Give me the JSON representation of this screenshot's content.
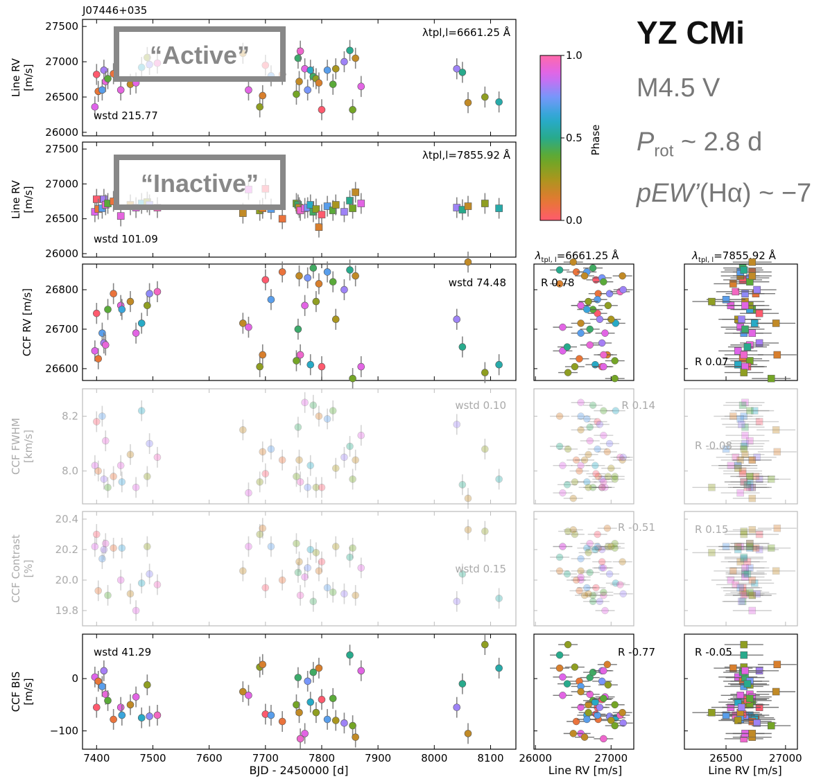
{
  "figure": {
    "star_id": "J07446+035",
    "star_name": "YZ CMi",
    "spectral_type": "M4.5 V",
    "prot_symbol": "P",
    "prot_sub": "rot",
    "prot_value": "~ 2.8 d",
    "pew_label": "pEW’",
    "pew_value": "(Hα) ~ −7",
    "label_active": "“Active”",
    "label_inactive": "“Inactive”",
    "colorbar": {
      "label": "Phase",
      "ticks": [
        "0.0",
        "0.5",
        "1.0"
      ]
    },
    "col_titles": {
      "prefix": "λ",
      "sub": "tpl, l",
      "active": "=6661.25 Å",
      "inactive": "=7855.92 Å"
    },
    "xlabel_time": "BJD - 2450000 [d]",
    "xlabel_rv": "Line RV [m/s]",
    "xticks_time": [
      "7400",
      "7500",
      "7600",
      "7700",
      "7800",
      "7900",
      "8000",
      "8100"
    ],
    "xticks_rv_left": [
      "26000",
      "27000"
    ],
    "xticks_rv_right": [
      "26500",
      "27000"
    ]
  },
  "chart_data": [
    {
      "panel": "line-rv-active",
      "type": "scatter",
      "ylabel": "Line RV [m/s]",
      "ylim": [
        25950,
        27600
      ],
      "yticks": [
        "26000",
        "26500",
        "27000",
        "27500"
      ],
      "wstd": "wstd 215.77",
      "annotation": "λtpl,l=6661.25 Å",
      "x": [
        7397,
        7400,
        7403,
        7410,
        7413,
        7416,
        7420,
        7430,
        7443,
        7460,
        7470,
        7480,
        7490,
        7494,
        7508,
        7660,
        7670,
        7690,
        7695,
        7700,
        7710,
        7730,
        7755,
        7758,
        7760,
        7762,
        7770,
        7775,
        7780,
        7785,
        7790,
        7795,
        7800,
        7810,
        7820,
        7825,
        7840,
        7850,
        7855,
        7860,
        7870,
        8040,
        8050,
        8060,
        8090,
        8115
      ],
      "y": [
        26360,
        26820,
        26580,
        26600,
        26880,
        26720,
        26760,
        26830,
        26600,
        26680,
        26700,
        26920,
        27060,
        26960,
        26980,
        27120,
        26600,
        26360,
        26520,
        26950,
        26800,
        26820,
        26540,
        27050,
        26720,
        27150,
        26900,
        26600,
        26880,
        26790,
        26760,
        26700,
        26320,
        26880,
        26680,
        26900,
        27000,
        27160,
        26320,
        27050,
        26650,
        26900,
        26850,
        26420,
        26500,
        26430
      ]
    },
    {
      "panel": "line-rv-inactive",
      "type": "scatter",
      "ylabel": "Line RV [m/s]",
      "ylim": [
        25950,
        27600
      ],
      "yticks": [
        "26000",
        "26500",
        "27000",
        "27500"
      ],
      "wstd": "wstd 101.09",
      "annotation": "λtpl,l=7855.92 Å",
      "x": [
        7397,
        7400,
        7403,
        7410,
        7413,
        7416,
        7420,
        7430,
        7443,
        7460,
        7470,
        7480,
        7490,
        7494,
        7508,
        7660,
        7670,
        7690,
        7695,
        7700,
        7710,
        7730,
        7755,
        7758,
        7760,
        7762,
        7770,
        7775,
        7780,
        7785,
        7790,
        7795,
        7800,
        7810,
        7820,
        7825,
        7840,
        7850,
        7855,
        7860,
        7870,
        8040,
        8050,
        8060,
        8090,
        8115
      ],
      "y": [
        26600,
        26780,
        26640,
        26650,
        26780,
        26700,
        26720,
        26750,
        26540,
        26700,
        26660,
        26720,
        26740,
        26700,
        26660,
        26580,
        26920,
        26620,
        26650,
        26930,
        26640,
        26500,
        26720,
        26700,
        26660,
        26620,
        26650,
        26660,
        26700,
        26600,
        26640,
        26380,
        26560,
        26680,
        26620,
        26700,
        26600,
        26760,
        26650,
        26880,
        26720,
        26660,
        26630,
        26680,
        26720,
        26650
      ]
    },
    {
      "panel": "ccf-rv",
      "type": "scatter",
      "ylabel": "CCF RV [m/s]",
      "ylim": [
        26570,
        26865
      ],
      "yticks": [
        "26600",
        "26700",
        "26800"
      ],
      "wstd": "wstd 74.48",
      "x": [
        7397,
        7400,
        7403,
        7410,
        7413,
        7416,
        7420,
        7430,
        7443,
        7445,
        7460,
        7470,
        7480,
        7490,
        7494,
        7508,
        7660,
        7670,
        7690,
        7695,
        7700,
        7710,
        7730,
        7755,
        7758,
        7760,
        7762,
        7770,
        7775,
        7780,
        7785,
        7790,
        7795,
        7800,
        7810,
        7820,
        7825,
        7840,
        7850,
        7855,
        7860,
        7870,
        8040,
        8050,
        8060,
        8090,
        8115
      ],
      "y": [
        26645,
        26740,
        26625,
        26690,
        26665,
        26660,
        26750,
        26790,
        26760,
        26750,
        26770,
        26690,
        26715,
        26760,
        26790,
        26795,
        26715,
        26705,
        26605,
        26635,
        26825,
        26775,
        26845,
        26620,
        26700,
        26835,
        26635,
        26760,
        26830,
        26610,
        26855,
        26770,
        26815,
        26605,
        26845,
        26820,
        26725,
        26800,
        26850,
        26575,
        26835,
        26605,
        26725,
        26655,
        26870,
        26590,
        26610
      ]
    },
    {
      "panel": "ccf-fwhm",
      "type": "scatter",
      "ylabel": "CCF FWHM [km/s]",
      "ylim": [
        7.88,
        8.3
      ],
      "yticks": [
        "8.0",
        "8.2"
      ],
      "wstd": "wstd 0.10",
      "x": [
        7397,
        7400,
        7403,
        7410,
        7413,
        7416,
        7420,
        7430,
        7443,
        7445,
        7460,
        7470,
        7480,
        7490,
        7494,
        7508,
        7660,
        7670,
        7690,
        7695,
        7700,
        7710,
        7730,
        7755,
        7758,
        7760,
        7762,
        7770,
        7775,
        7780,
        7785,
        7790,
        7795,
        7800,
        7810,
        7820,
        7825,
        7840,
        7850,
        7855,
        7860,
        7870,
        8040,
        8050,
        8060,
        8090,
        8115
      ],
      "y": [
        8.02,
        8.18,
        8.0,
        8.2,
        7.97,
        8.11,
        7.94,
        7.98,
        8.02,
        7.96,
        8.06,
        7.94,
        8.22,
        7.98,
        8.1,
        8.05,
        8.15,
        7.92,
        7.96,
        8.07,
        7.99,
        8.08,
        8.04,
        7.98,
        8.16,
        8.04,
        7.96,
        8.25,
        7.94,
        8.02,
        8.24,
        7.94,
        8.2,
        7.94,
        8.19,
        8.22,
        8.01,
        8.05,
        8.09,
        7.97,
        8.04,
        8.13,
        8.17,
        7.95,
        7.9,
        8.08,
        7.97
      ]
    },
    {
      "panel": "ccf-contrast",
      "type": "scatter",
      "ylabel": "CCF Contrast [%]",
      "ylim": [
        19.7,
        20.45
      ],
      "yticks": [
        "19.8",
        "20.0",
        "20.2",
        "20.4"
      ],
      "wstd": "wstd 0.15",
      "x": [
        7397,
        7400,
        7403,
        7410,
        7413,
        7416,
        7420,
        7430,
        7443,
        7445,
        7460,
        7470,
        7480,
        7490,
        7494,
        7508,
        7660,
        7670,
        7690,
        7695,
        7700,
        7710,
        7730,
        7755,
        7758,
        7760,
        7762,
        7770,
        7775,
        7780,
        7785,
        7790,
        7795,
        7800,
        7810,
        7820,
        7825,
        7840,
        7850,
        7855,
        7860,
        7870,
        8040,
        8050,
        8060,
        8090,
        8115
      ],
      "y": [
        20.22,
        20.3,
        19.93,
        20.14,
        20.2,
        20.24,
        19.9,
        20.21,
        20.0,
        20.21,
        19.91,
        19.8,
        19.98,
        20.22,
        20.04,
        19.97,
        20.06,
        20.22,
        20.3,
        20.34,
        19.95,
        20.22,
        20.0,
        20.24,
        20.05,
        20.12,
        19.9,
        20.02,
        20.08,
        20.2,
        19.86,
        20.18,
        20.06,
        20.12,
        19.95,
        19.92,
        20.22,
        19.91,
        20.15,
        20.21,
        19.9,
        20.08,
        19.86,
        20.04,
        20.33,
        20.32,
        19.88
      ]
    },
    {
      "panel": "ccf-bis",
      "type": "scatter",
      "ylabel": "CCF BIS [m/s]",
      "ylim": [
        -135,
        85
      ],
      "yticks": [
        "0",
        "−100"
      ],
      "wstd": "wstd 41.29",
      "x": [
        7397,
        7400,
        7403,
        7410,
        7413,
        7416,
        7420,
        7430,
        7443,
        7445,
        7460,
        7470,
        7480,
        7490,
        7494,
        7508,
        7660,
        7670,
        7690,
        7695,
        7700,
        7710,
        7730,
        7755,
        7758,
        7760,
        7762,
        7770,
        7775,
        7780,
        7785,
        7790,
        7795,
        7800,
        7810,
        7820,
        7825,
        7840,
        7850,
        7855,
        7860,
        7870,
        8040,
        8050,
        8060,
        8090,
        8115
      ],
      "y": [
        3,
        -55,
        -5,
        -15,
        15,
        -30,
        -42,
        -78,
        -55,
        -70,
        -50,
        -35,
        -75,
        -12,
        -72,
        -70,
        -25,
        -32,
        22,
        27,
        -68,
        -70,
        -82,
        -50,
        2,
        -65,
        -115,
        -105,
        -5,
        -45,
        12,
        -65,
        20,
        -40,
        -78,
        -38,
        -80,
        -85,
        45,
        -90,
        -112,
        15,
        -55,
        -10,
        -105,
        65,
        20
      ]
    },
    {
      "panel": "scatter-active-ccf-rv",
      "type": "scatter",
      "xlabel": "Line RV [m/s]",
      "annotation": "R 0.78"
    },
    {
      "panel": "scatter-active-fwhm",
      "type": "scatter",
      "annotation": "R 0.14"
    },
    {
      "panel": "scatter-active-contrast",
      "type": "scatter",
      "annotation": "R -0.51"
    },
    {
      "panel": "scatter-active-bis",
      "type": "scatter",
      "annotation": "R -0.77"
    },
    {
      "panel": "scatter-inactive-ccf-rv",
      "type": "scatter",
      "annotation": "R 0.07"
    },
    {
      "panel": "scatter-inactive-fwhm",
      "type": "scatter",
      "annotation": "R -0.08"
    },
    {
      "panel": "scatter-inactive-contrast",
      "type": "scatter",
      "annotation": "R 0.15"
    },
    {
      "panel": "scatter-inactive-bis",
      "type": "scatter",
      "annotation": "R -0.05"
    }
  ]
}
